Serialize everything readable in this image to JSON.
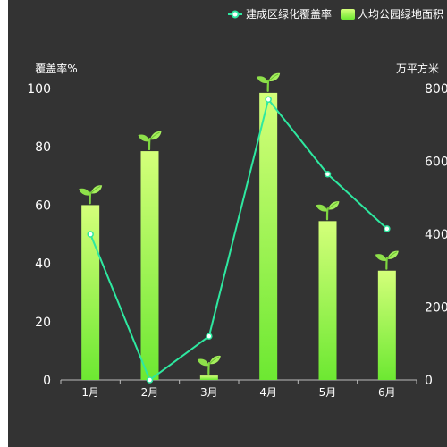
{
  "chart_data": {
    "type": "bar",
    "categories": [
      "1月",
      "2月",
      "3月",
      "4月",
      "5月",
      "6月"
    ],
    "series": [
      {
        "name": "人均公园绿地面积",
        "type": "bar",
        "axis": "left",
        "values": [
          60,
          78.5,
          1.5,
          98.5,
          54.5,
          37.5
        ]
      },
      {
        "name": "建成区绿化覆盖率",
        "type": "line",
        "axis": "right",
        "values": [
          400,
          0,
          120,
          770,
          565,
          415
        ]
      }
    ],
    "y_left": {
      "label": "覆盖率%",
      "ticks": [
        0,
        20,
        40,
        60,
        80,
        100
      ],
      "range": [
        0,
        100
      ]
    },
    "y_right": {
      "label": "万平方米",
      "ticks": [
        0,
        200,
        400,
        600,
        800
      ],
      "range": [
        0,
        800
      ]
    },
    "legend": [
      {
        "name": "建成区绿化覆盖率",
        "marker": "line-circle"
      },
      {
        "name": "人均公园绿地面积",
        "marker": "bar"
      }
    ],
    "legend_position": "top-right",
    "grid": false,
    "colors": {
      "background": "#333333",
      "bar_top": "#d4ff7a",
      "bar_bottom": "#6de832",
      "line": "#2ee8a0",
      "text": "#ffffff",
      "axis": "#bbbbbb",
      "sprout": "#8ee04a"
    },
    "bar_top_icon": "sprout-icon"
  }
}
